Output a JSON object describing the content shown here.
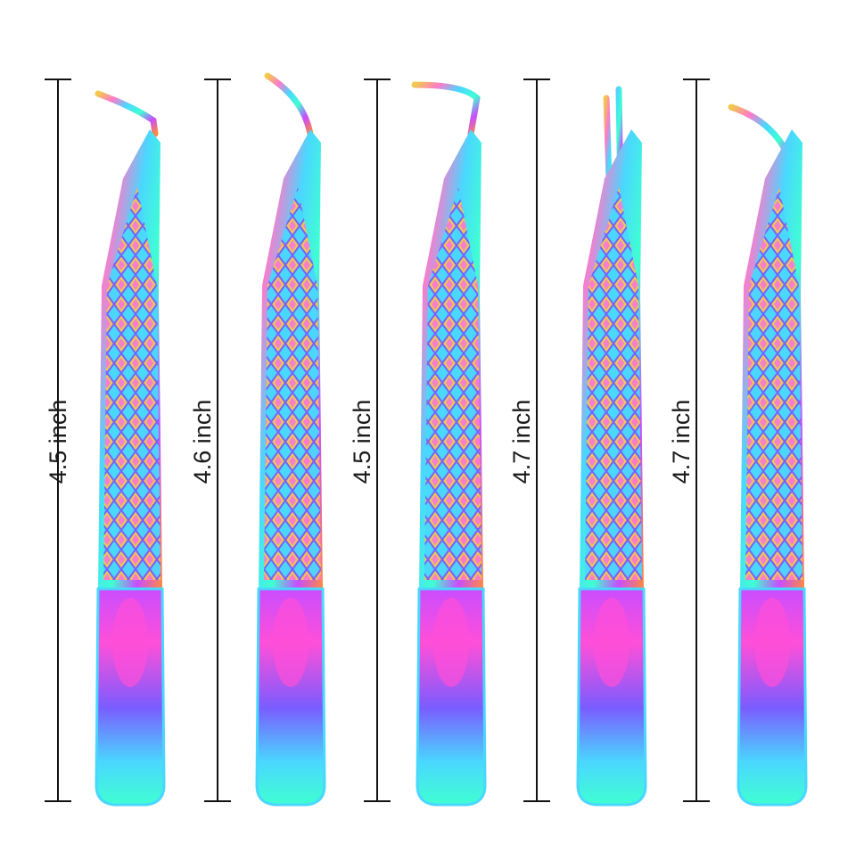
{
  "measurements": [
    "4.5 inch",
    "4.6 inch",
    "4.5 inch",
    "4.7 inch",
    "4.7 inch"
  ],
  "tweezers": [
    {
      "tip": "curved-hook"
    },
    {
      "tip": "curved-hook-long"
    },
    {
      "tip": "l-shape-boot"
    },
    {
      "tip": "straight-pointed"
    },
    {
      "tip": "gentle-curve"
    }
  ],
  "colors": {
    "rainbow": [
      "#c94dff",
      "#ff4fd8",
      "#4ad7ff",
      "#3fffd2",
      "#f2c94c",
      "#ff8a3d",
      "#7a5cff"
    ],
    "dimension_line": "#111111",
    "background": "#ffffff"
  }
}
